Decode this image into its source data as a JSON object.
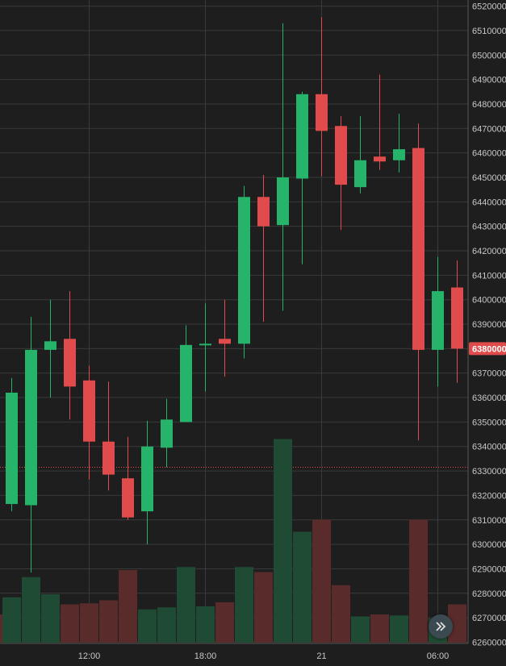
{
  "chart_data": {
    "type": "candlestick",
    "colors": {
      "up": "#26b36a",
      "down": "#e04b4b",
      "up_volume": "#1f4a33",
      "down_volume": "#5a2b2b",
      "grid": "#3a3a3a",
      "background": "#1e1e1e",
      "last_price": "#e04b4b"
    },
    "y_ticks": [
      "6260000",
      "6270000",
      "6280000",
      "6290000",
      "6300000",
      "6310000",
      "6320000",
      "6330000",
      "6340000",
      "6350000",
      "6360000",
      "6370000",
      "6380000",
      "6390000",
      "6400000",
      "6410000",
      "6420000",
      "6430000",
      "6440000",
      "6450000",
      "6460000",
      "6470000",
      "6480000",
      "6490000",
      "6500000",
      "6510000",
      "6520000"
    ],
    "ylim": [
      6259500,
      6522500
    ],
    "x_ticks": [
      {
        "label": "12:00",
        "index": 4
      },
      {
        "label": "18:00",
        "index": 10
      },
      {
        "label": "21",
        "index": 16
      },
      {
        "label": "06:00",
        "index": 22
      }
    ],
    "last_price": {
      "label": "6380000",
      "value": 6380000
    },
    "dotted_price": 6331500,
    "candles": [
      {
        "o": 6316500,
        "h": 6368000,
        "l": 6313500,
        "c": 6362000,
        "v": 0.45
      },
      {
        "o": 6316000,
        "h": 6393000,
        "l": 6288500,
        "c": 6379500,
        "v": 0.65
      },
      {
        "o": 6379500,
        "h": 6400000,
        "l": 6360000,
        "c": 6383000,
        "v": 0.48
      },
      {
        "o": 6384000,
        "h": 6403500,
        "l": 6351000,
        "c": 6364500,
        "v": 0.38
      },
      {
        "o": 6367000,
        "h": 6373000,
        "l": 6326500,
        "c": 6342000,
        "v": 0.39
      },
      {
        "o": 6342000,
        "h": 6366500,
        "l": 6322000,
        "c": 6328500,
        "v": 0.42
      },
      {
        "o": 6327000,
        "h": 6344000,
        "l": 6310000,
        "c": 6311000,
        "v": 0.72
      },
      {
        "o": 6313500,
        "h": 6350500,
        "l": 6300000,
        "c": 6340000,
        "v": 0.33
      },
      {
        "o": 6339500,
        "h": 6359500,
        "l": 6331500,
        "c": 6351000,
        "v": 0.35
      },
      {
        "o": 6350000,
        "h": 6389500,
        "l": 6350000,
        "c": 6381500,
        "v": 0.75
      },
      {
        "o": 6382000,
        "h": 6398500,
        "l": 6362500,
        "c": 6382000,
        "v": 0.36
      },
      {
        "o": 6384000,
        "h": 6400000,
        "l": 6368500,
        "c": 6382000,
        "v": 0.4
      },
      {
        "o": 6382000,
        "h": 6446500,
        "l": 6376000,
        "c": 6442000,
        "v": 0.75
      },
      {
        "o": 6442000,
        "h": 6451000,
        "l": 6391000,
        "c": 6430000,
        "v": 0.7
      },
      {
        "o": 6430500,
        "h": 6513000,
        "l": 6395500,
        "c": 6450000,
        "v": 2.02
      },
      {
        "o": 6449500,
        "h": 6485000,
        "l": 6414500,
        "c": 6484000,
        "v": 1.1
      },
      {
        "o": 6484000,
        "h": 6515500,
        "l": 6450500,
        "c": 6469000,
        "v": 1.22
      },
      {
        "o": 6471000,
        "h": 6475000,
        "l": 6428500,
        "c": 6447000,
        "v": 0.57
      },
      {
        "o": 6446000,
        "h": 6475000,
        "l": 6443500,
        "c": 6457000,
        "v": 0.26
      },
      {
        "o": 6458500,
        "h": 6492000,
        "l": 6453000,
        "c": 6456500,
        "v": 0.28
      },
      {
        "o": 6457000,
        "h": 6476000,
        "l": 6452000,
        "c": 6461500,
        "v": 0.27
      },
      {
        "o": 6462000,
        "h": 6472000,
        "l": 6342500,
        "c": 6379500,
        "v": 1.22
      },
      {
        "o": 6379500,
        "h": 6417500,
        "l": 6364500,
        "c": 6403500,
        "v": 0.24
      },
      {
        "o": 6405000,
        "h": 6416000,
        "l": 6366000,
        "c": 6380000,
        "v": 0.38
      }
    ],
    "partial_left_volume": {
      "v": 0.28,
      "dir": "down"
    }
  },
  "icons": {
    "scroll_button": "double-chevron-right-icon"
  }
}
